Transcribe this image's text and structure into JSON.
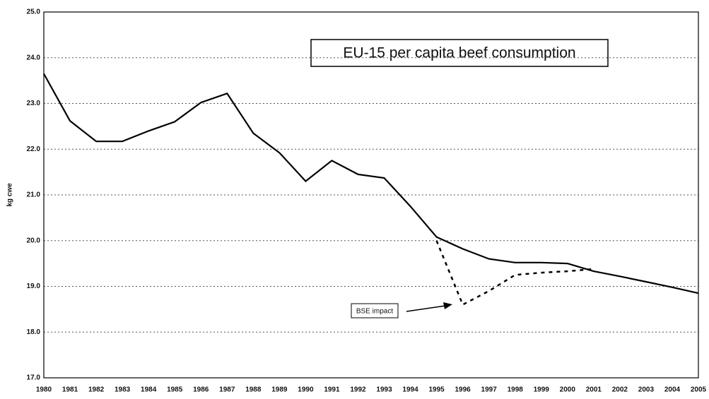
{
  "chart_data": {
    "type": "line",
    "title": "EU-15 per capita beef consumption",
    "y_label": "kg cwe",
    "annotations": [
      "BSE impact"
    ],
    "categories": [
      "1980",
      "1981",
      "1982",
      "1983",
      "1984",
      "1985",
      "1986",
      "1987",
      "1988",
      "1989",
      "1990",
      "1991",
      "1992",
      "1993",
      "1994",
      "1995",
      "1996",
      "1997",
      "1998",
      "1999",
      "2000",
      "2001",
      "2002",
      "2003",
      "2004",
      "2005"
    ],
    "series": [
      {
        "color": "#000000",
        "style": "solid",
        "values": [
          23.65,
          22.62,
          22.17,
          22.17,
          22.4,
          22.6,
          23.02,
          23.22,
          22.35,
          21.92,
          21.3,
          21.75,
          21.45,
          21.37,
          20.75,
          20.08,
          19.82,
          19.6,
          19.52,
          19.52,
          19.5,
          19.33,
          19.22,
          19.1,
          18.98,
          18.85
        ]
      },
      {
        "color": "#000000",
        "style": "dashed",
        "values": [
          null,
          null,
          null,
          null,
          null,
          null,
          null,
          null,
          null,
          null,
          null,
          null,
          null,
          null,
          null,
          20.0,
          18.6,
          18.9,
          19.25,
          19.3,
          19.33,
          19.38,
          null,
          null,
          null,
          null
        ]
      }
    ],
    "ylim": [
      17,
      25
    ],
    "yticks": [
      {
        "value": 17,
        "label": "17.0"
      },
      {
        "value": 18,
        "label": "18.0"
      },
      {
        "value": 19,
        "label": "19.0"
      },
      {
        "value": 20,
        "label": "20.0"
      },
      {
        "value": 21,
        "label": "21.0"
      },
      {
        "value": 22,
        "label": "22.0"
      },
      {
        "value": 23,
        "label": "23.0"
      },
      {
        "value": 24,
        "label": "24.0"
      },
      {
        "value": 25,
        "label": "25.0"
      }
    ],
    "grid": true
  }
}
